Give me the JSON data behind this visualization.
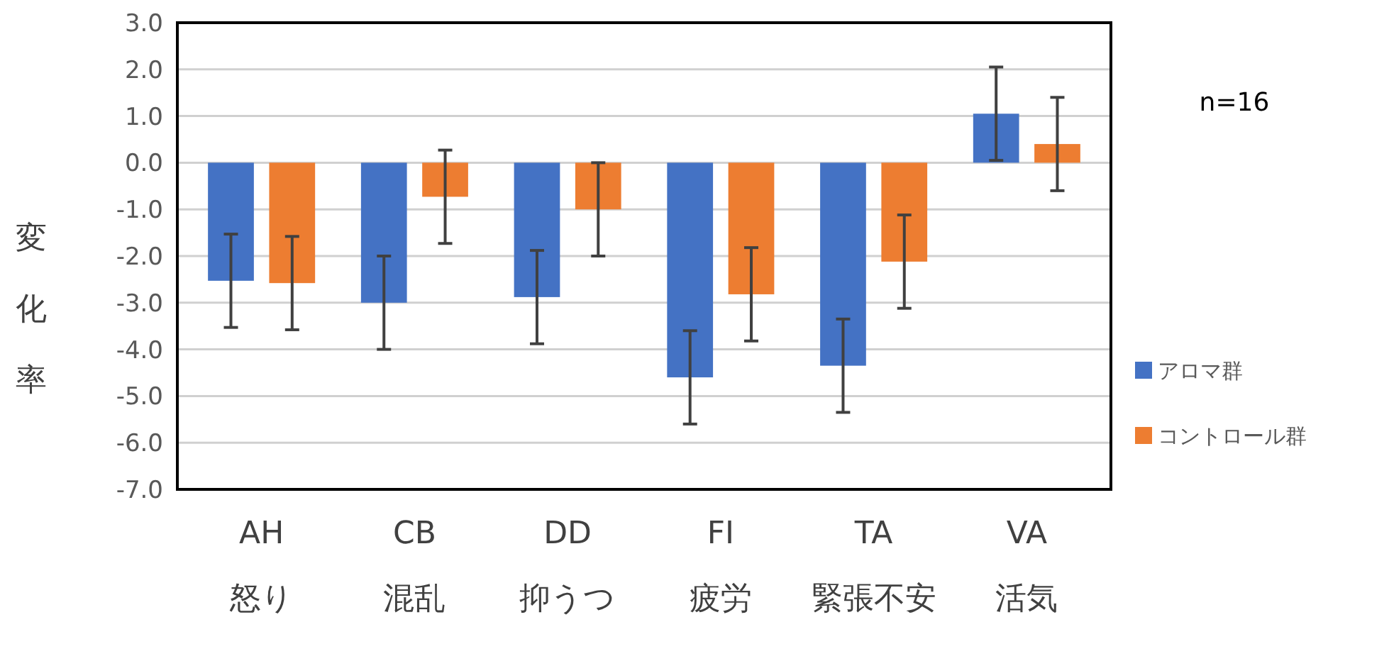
{
  "chart_data": {
    "type": "bar",
    "ylabel": "変化率",
    "categories": [
      "AH\n怒り",
      "CB\n混乱",
      "DD\n抑うつ",
      "FI\n疲労",
      "TA\n緊張不安",
      "VA\n活気"
    ],
    "series": [
      {
        "name": "アロマ群",
        "color": "#4472c4",
        "values": [
          -2.53,
          -3.0,
          -2.88,
          -4.6,
          -4.35,
          1.05
        ],
        "errors": [
          1.0,
          1.0,
          1.0,
          1.0,
          1.0,
          1.0
        ]
      },
      {
        "name": "コントロール群",
        "color": "#ed7d31",
        "values": [
          -2.58,
          -0.73,
          -1.0,
          -2.82,
          -2.12,
          0.4
        ],
        "errors": [
          1.0,
          1.0,
          1.0,
          1.0,
          1.0,
          1.0
        ]
      }
    ],
    "ylim": [
      -7,
      3
    ],
    "yticks": [
      {
        "value": 3,
        "label": "3.0"
      },
      {
        "value": 2,
        "label": "2.0"
      },
      {
        "value": 1,
        "label": "1.0"
      },
      {
        "value": 0,
        "label": "0.0"
      },
      {
        "value": -1,
        "label": "-1.0"
      },
      {
        "value": -2,
        "label": "-2.0"
      },
      {
        "value": -3,
        "label": "-3.0"
      },
      {
        "value": -4,
        "label": "-4.0"
      },
      {
        "value": -5,
        "label": "-5.0"
      },
      {
        "value": -6,
        "label": "-6.0"
      },
      {
        "value": -7,
        "label": "-7.0"
      }
    ],
    "grid": "y",
    "legend": "right",
    "annotations": [
      "n=16"
    ]
  }
}
